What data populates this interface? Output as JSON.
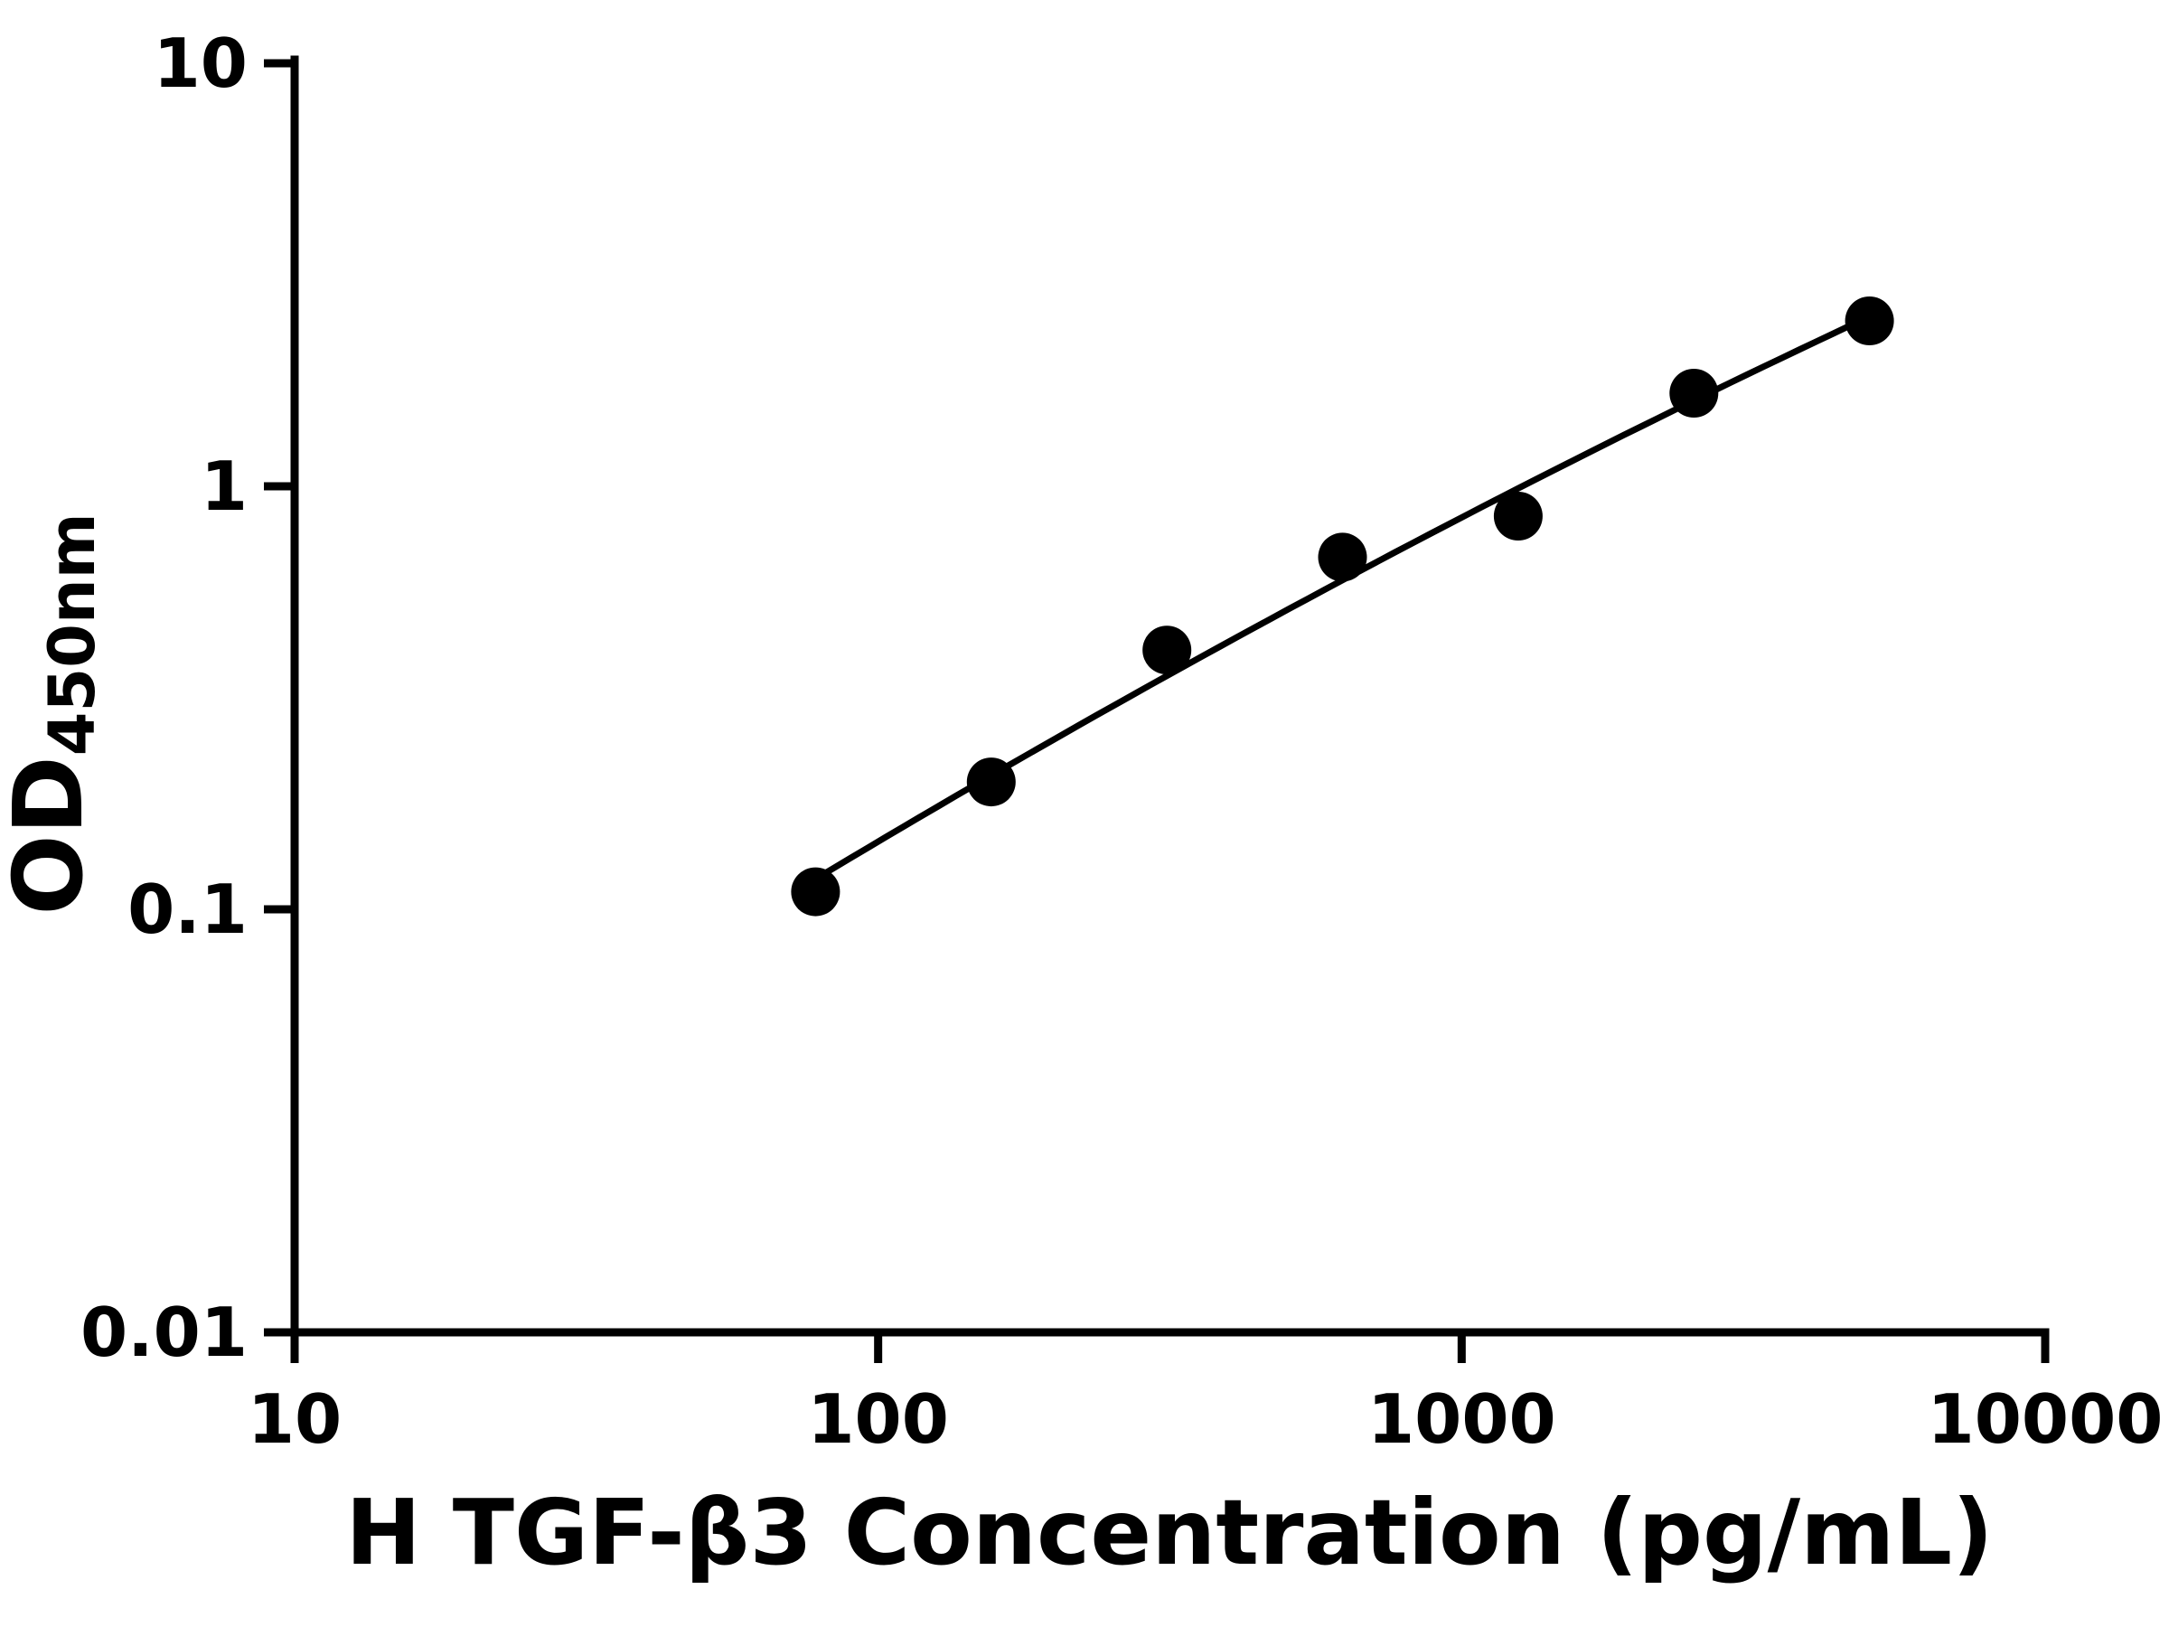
{
  "chart_data": {
    "type": "scatter",
    "title": "",
    "xlabel": "H TGF-β3 Concentration (pg/mL)",
    "ylabel_main": "OD",
    "ylabel_sub": "450nm",
    "x_scale": "log",
    "y_scale": "log",
    "xlim": [
      10,
      10000
    ],
    "ylim": [
      0.01,
      10
    ],
    "x_ticks": [
      10,
      100,
      1000,
      10000
    ],
    "y_ticks": [
      0.01,
      0.1,
      1,
      10
    ],
    "grid": false,
    "legend": "none",
    "points": [
      {
        "x": 78.125,
        "y": 0.11
      },
      {
        "x": 156.25,
        "y": 0.2
      },
      {
        "x": 312.5,
        "y": 0.41
      },
      {
        "x": 625,
        "y": 0.68
      },
      {
        "x": 1250,
        "y": 0.85
      },
      {
        "x": 2500,
        "y": 1.66
      },
      {
        "x": 5000,
        "y": 2.46
      }
    ],
    "trend_line": {
      "x_start": 78.125,
      "x_end": 5000,
      "anchors": [
        {
          "x": 78.125,
          "y": 0.118
        },
        {
          "x": 625,
          "y": 0.6
        },
        {
          "x": 5000,
          "y": 2.52
        }
      ]
    },
    "marker_color": "#000000",
    "line_color": "#000000",
    "axis_color": "#000000"
  }
}
